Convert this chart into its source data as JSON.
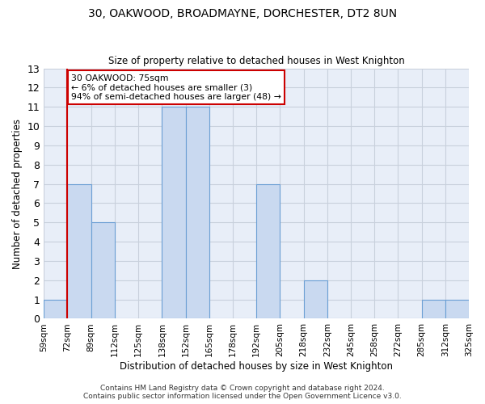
{
  "title": "30, OAKWOOD, BROADMAYNE, DORCHESTER, DT2 8UN",
  "subtitle": "Size of property relative to detached houses in West Knighton",
  "xlabel": "Distribution of detached houses by size in West Knighton",
  "ylabel": "Number of detached properties",
  "bin_labels": [
    "59sqm",
    "72sqm",
    "89sqm",
    "112sqm",
    "125sqm",
    "138sqm",
    "152sqm",
    "165sqm",
    "178sqm",
    "192sqm",
    "205sqm",
    "218sqm",
    "232sqm",
    "245sqm",
    "258sqm",
    "272sqm",
    "285sqm",
    "312sqm",
    "325sqm"
  ],
  "bar_heights": [
    1,
    7,
    5,
    0,
    0,
    11,
    11,
    0,
    0,
    7,
    0,
    2,
    0,
    0,
    0,
    0,
    1,
    1
  ],
  "bar_color": "#c9d9f0",
  "bar_edge_color": "#6b9fd4",
  "grid_color": "#c8d0dc",
  "bg_color": "#e8eef8",
  "subject_bar_index": 1,
  "subject_line_color": "#cc0000",
  "annotation_text": "30 OAKWOOD: 75sqm\n← 6% of detached houses are smaller (3)\n94% of semi-detached houses are larger (48) →",
  "annotation_box_color": "#cc0000",
  "ylim": [
    0,
    13
  ],
  "yticks": [
    0,
    1,
    2,
    3,
    4,
    5,
    6,
    7,
    8,
    9,
    10,
    11,
    12,
    13
  ],
  "footer_line1": "Contains HM Land Registry data © Crown copyright and database right 2024.",
  "footer_line2": "Contains public sector information licensed under the Open Government Licence v3.0."
}
